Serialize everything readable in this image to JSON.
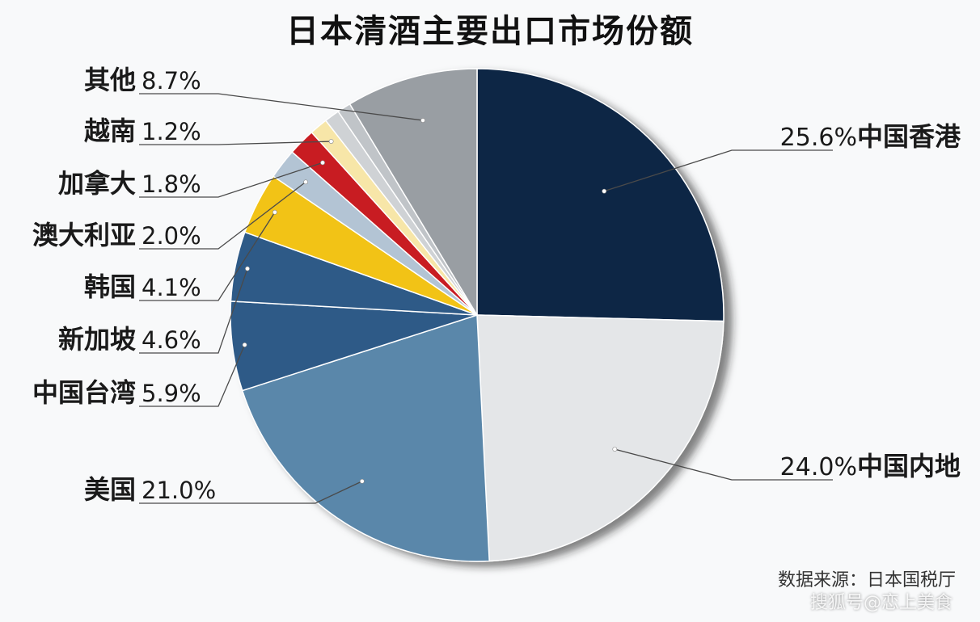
{
  "chart_data": {
    "type": "pie",
    "title": "日本清酒主要出口市场份额",
    "source": "数据来源：日本国税厅",
    "slices": [
      {
        "label": "中国香港",
        "value": 25.6,
        "value_text": "25.6%",
        "color": "#0c2545"
      },
      {
        "label": "中国内地",
        "value": 24.0,
        "value_text": "24.0%",
        "color": "#e4e6e8"
      },
      {
        "label": "美国",
        "value": 21.0,
        "value_text": "21.0%",
        "color": "#5a87aa"
      },
      {
        "label": "中国台湾",
        "value": 5.9,
        "value_text": "5.9%",
        "color": "#2f5a87"
      },
      {
        "label": "新加坡",
        "value": 4.6,
        "value_text": "4.6%",
        "color": "#2f5a87"
      },
      {
        "label": "韩国",
        "value": 4.1,
        "value_text": "4.1%",
        "color": "#f2c318"
      },
      {
        "label": "澳大利亚",
        "value": 2.0,
        "value_text": "2.0%",
        "color": "#b3c4d4"
      },
      {
        "label": "加拿大",
        "value": 1.8,
        "value_text": "1.8%",
        "color": "#c81e23"
      },
      {
        "label": "越南",
        "value": 1.2,
        "value_text": "1.2%",
        "color": "#f7e6a8"
      },
      {
        "label": "其他",
        "value": 8.7,
        "value_text": "8.7%",
        "color": "#999ea3"
      }
    ],
    "unlabeled_slices": [
      {
        "value": 1.0,
        "color": "#cfd2d5"
      },
      {
        "value": 0.9,
        "color": "#c0c4c8"
      }
    ]
  },
  "watermark": "搜狐号@恋上美食"
}
